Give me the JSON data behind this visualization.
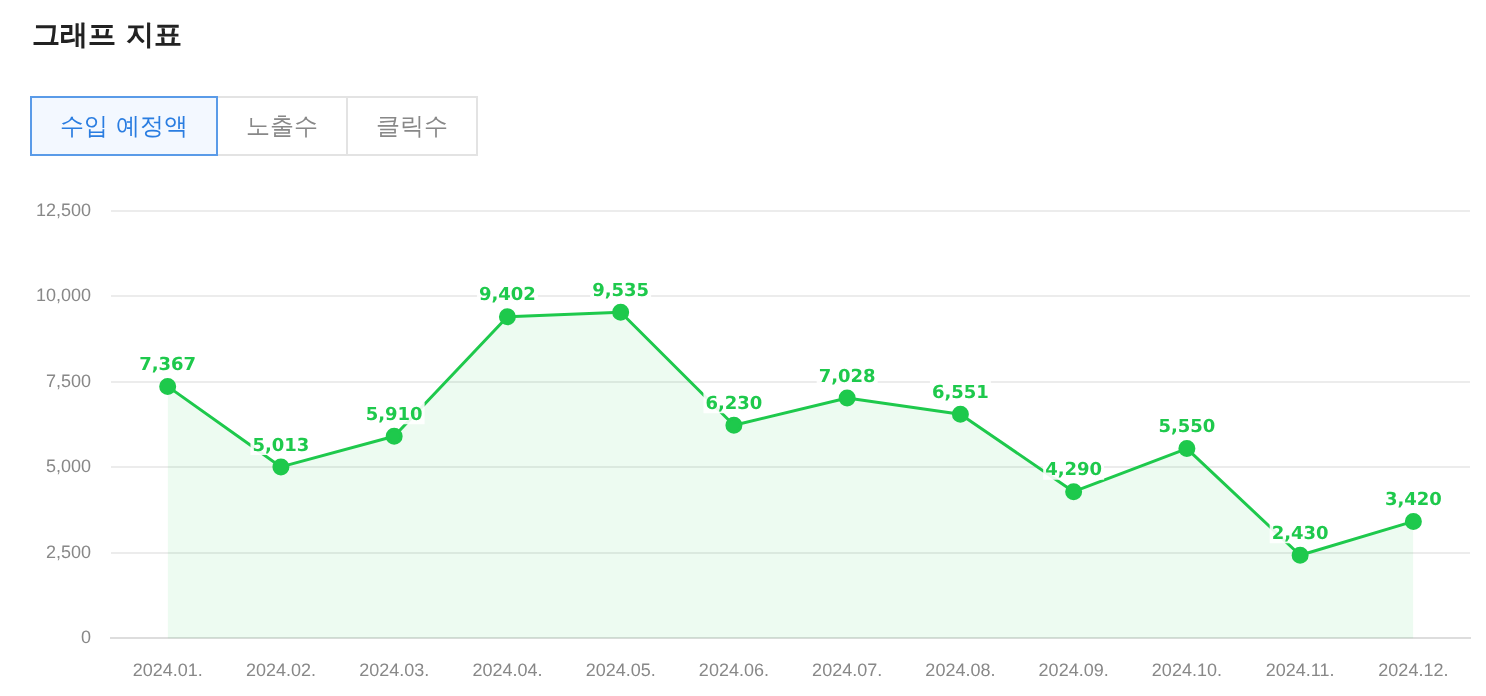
{
  "chart_data": {
    "type": "area",
    "title": "그래프 지표",
    "annotations": [
      "수입 예정액",
      "노출수",
      "클릭수"
    ],
    "categories": [
      "2024.01.",
      "2024.02.",
      "2024.03.",
      "2024.04.",
      "2024.05.",
      "2024.06.",
      "2024.07.",
      "2024.08.",
      "2024.09.",
      "2024.10.",
      "2024.11.",
      "2024.12."
    ],
    "values": [
      7367,
      5013,
      5910,
      9402,
      9535,
      6230,
      7028,
      6551,
      4290,
      5550,
      2430,
      3420
    ],
    "value_labels": [
      "7,367",
      "5,013",
      "5,910",
      "9,402",
      "9,535",
      "6,230",
      "7,028",
      "6,551",
      "4,290",
      "5,550",
      "2,430",
      "3,420"
    ],
    "color": "#1ec94c",
    "ylim": [
      0,
      12500
    ],
    "yticks": [
      0,
      {
        "value": 2500,
        "label": "2,500"
      },
      {
        "value": 5000,
        "label": "5,000"
      },
      {
        "value": 7500,
        "label": "7,500"
      },
      {
        "value": 10000,
        "label": "10,000"
      },
      {
        "value": 12500,
        "label": "12,500"
      }
    ],
    "grid": "y",
    "legend": false,
    "marker": "circle"
  }
}
